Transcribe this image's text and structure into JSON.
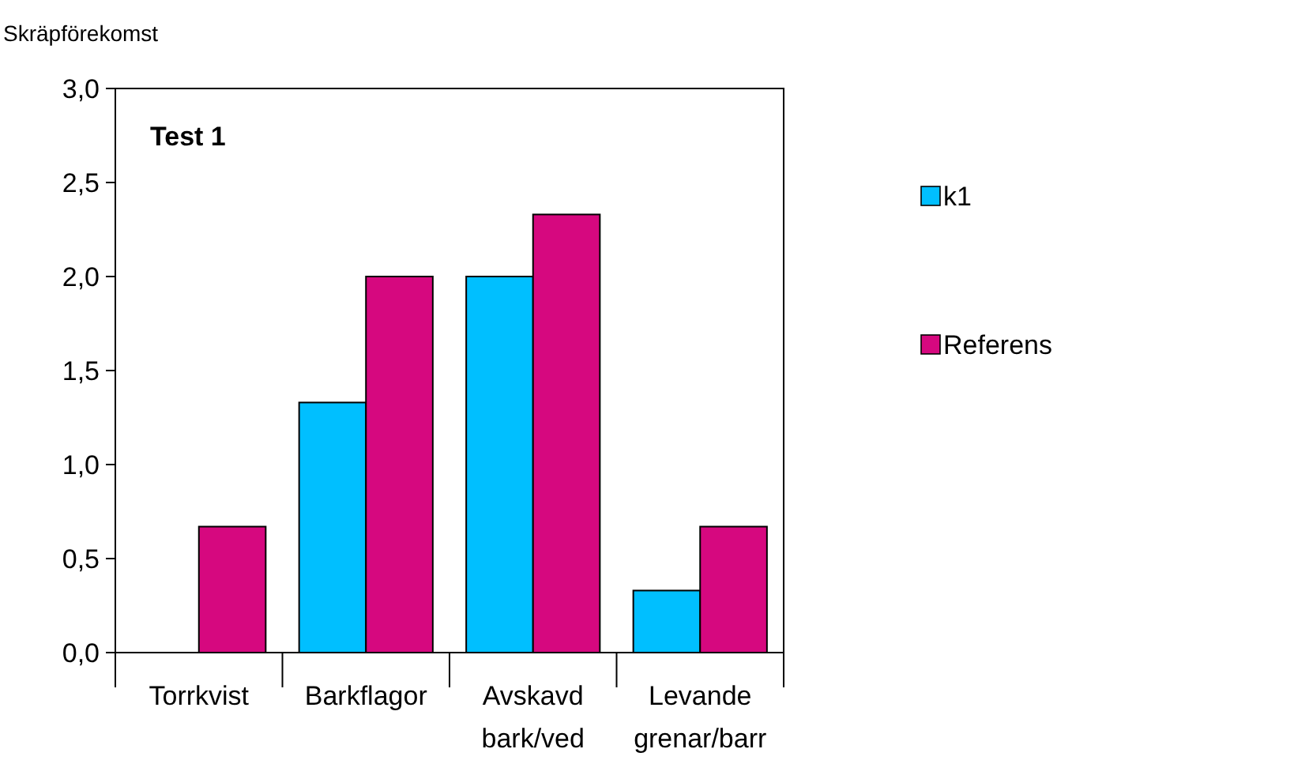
{
  "chart_data": {
    "type": "bar",
    "title": "Test 1",
    "ylabel": "Skräpförekomst",
    "categories": [
      "Torrkvist",
      "Barkflagor",
      "Avskavd bark/ved",
      "Levande grenar/barr"
    ],
    "series": [
      {
        "name": "k1",
        "color": "#00bfff",
        "values": [
          0,
          1.33,
          2.0,
          0.33
        ]
      },
      {
        "name": "Referens",
        "color": "#d6087f",
        "values": [
          0.67,
          2.0,
          2.33,
          0.67
        ]
      }
    ],
    "ylim": [
      0,
      3
    ],
    "yticks": [
      {
        "value": 0,
        "label": "0,0"
      },
      {
        "value": 0.5,
        "label": "0,5"
      },
      {
        "value": 1,
        "label": "1,0"
      },
      {
        "value": 1.5,
        "label": "1,5"
      },
      {
        "value": 2,
        "label": "2,0"
      },
      {
        "value": 2.5,
        "label": "2,5"
      },
      {
        "value": 3,
        "label": "3,0"
      }
    ],
    "grid": false,
    "legend": "right"
  }
}
